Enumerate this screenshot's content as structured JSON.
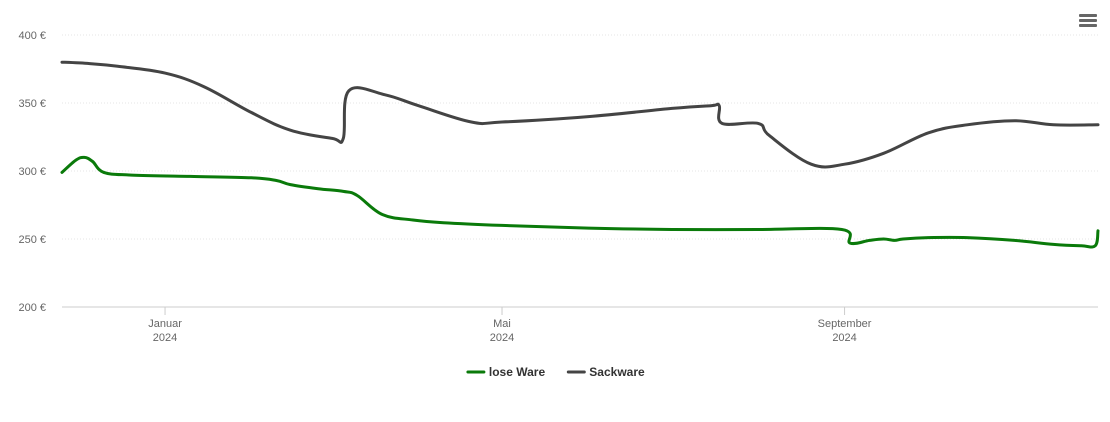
{
  "chart_data": {
    "type": "line",
    "title": "",
    "xlabel": "",
    "ylabel": "",
    "ylim": [
      200,
      400
    ],
    "y_ticks": [
      {
        "value": 200,
        "label": "200 €"
      },
      {
        "value": 250,
        "label": "250 €"
      },
      {
        "value": 300,
        "label": "300 €"
      },
      {
        "value": 350,
        "label": "350 €"
      },
      {
        "value": 400,
        "label": "400 €"
      }
    ],
    "x_range": [
      "2023-11-25",
      "2024-12-01"
    ],
    "x_ticks": [
      {
        "date": "2024-01-01",
        "label": [
          "Januar",
          "2024"
        ]
      },
      {
        "date": "2024-05-01",
        "label": [
          "Mai",
          "2024"
        ]
      },
      {
        "date": "2024-09-01",
        "label": [
          "September",
          "2024"
        ]
      }
    ],
    "grid": true,
    "legend_position": "bottom-center",
    "series": [
      {
        "name": "lose Ware",
        "color": "#0a7a0a",
        "points": [
          [
            "2023-11-25",
            299
          ],
          [
            "2023-11-30",
            308
          ],
          [
            "2023-12-03",
            310
          ],
          [
            "2023-12-06",
            307
          ],
          [
            "2023-12-10",
            299
          ],
          [
            "2023-12-20",
            297
          ],
          [
            "2024-01-10",
            296
          ],
          [
            "2024-02-01",
            295
          ],
          [
            "2024-02-10",
            293
          ],
          [
            "2024-02-15",
            290
          ],
          [
            "2024-02-25",
            287
          ],
          [
            "2024-03-05",
            285
          ],
          [
            "2024-03-10",
            282
          ],
          [
            "2024-03-19",
            268
          ],
          [
            "2024-03-30",
            264
          ],
          [
            "2024-04-10",
            262
          ],
          [
            "2024-05-01",
            260
          ],
          [
            "2024-06-01",
            258
          ],
          [
            "2024-07-01",
            257
          ],
          [
            "2024-08-01",
            257
          ],
          [
            "2024-08-31",
            257
          ],
          [
            "2024-09-03",
            247
          ],
          [
            "2024-09-10",
            249
          ],
          [
            "2024-09-15",
            250
          ],
          [
            "2024-09-19",
            249
          ],
          [
            "2024-09-22",
            250
          ],
          [
            "2024-10-01",
            251
          ],
          [
            "2024-10-15",
            251
          ],
          [
            "2024-11-01",
            249
          ],
          [
            "2024-11-15",
            246
          ],
          [
            "2024-11-25",
            245
          ],
          [
            "2024-11-30",
            245
          ],
          [
            "2024-12-01",
            256
          ]
        ]
      },
      {
        "name": "Sackware",
        "color": "#444444",
        "points": [
          [
            "2023-11-25",
            380
          ],
          [
            "2023-12-05",
            379
          ],
          [
            "2023-12-15",
            377
          ],
          [
            "2024-01-01",
            372
          ],
          [
            "2024-01-15",
            362
          ],
          [
            "2024-02-01",
            343
          ],
          [
            "2024-02-15",
            330
          ],
          [
            "2024-03-01",
            324
          ],
          [
            "2024-03-05",
            324
          ],
          [
            "2024-03-07",
            359
          ],
          [
            "2024-03-20",
            356
          ],
          [
            "2024-04-01",
            348
          ],
          [
            "2024-04-20",
            336
          ],
          [
            "2024-05-01",
            336
          ],
          [
            "2024-06-01",
            340
          ],
          [
            "2024-07-01",
            346
          ],
          [
            "2024-07-15",
            348
          ],
          [
            "2024-07-18",
            348
          ],
          [
            "2024-07-19",
            335
          ],
          [
            "2024-08-01",
            335
          ],
          [
            "2024-08-05",
            326
          ],
          [
            "2024-08-20",
            305
          ],
          [
            "2024-09-01",
            305
          ],
          [
            "2024-09-15",
            313
          ],
          [
            "2024-10-01",
            328
          ],
          [
            "2024-10-15",
            334
          ],
          [
            "2024-11-01",
            337
          ],
          [
            "2024-11-15",
            334
          ],
          [
            "2024-12-01",
            334
          ]
        ]
      }
    ]
  },
  "icons": {
    "menu": "hamburger-menu-icon"
  }
}
